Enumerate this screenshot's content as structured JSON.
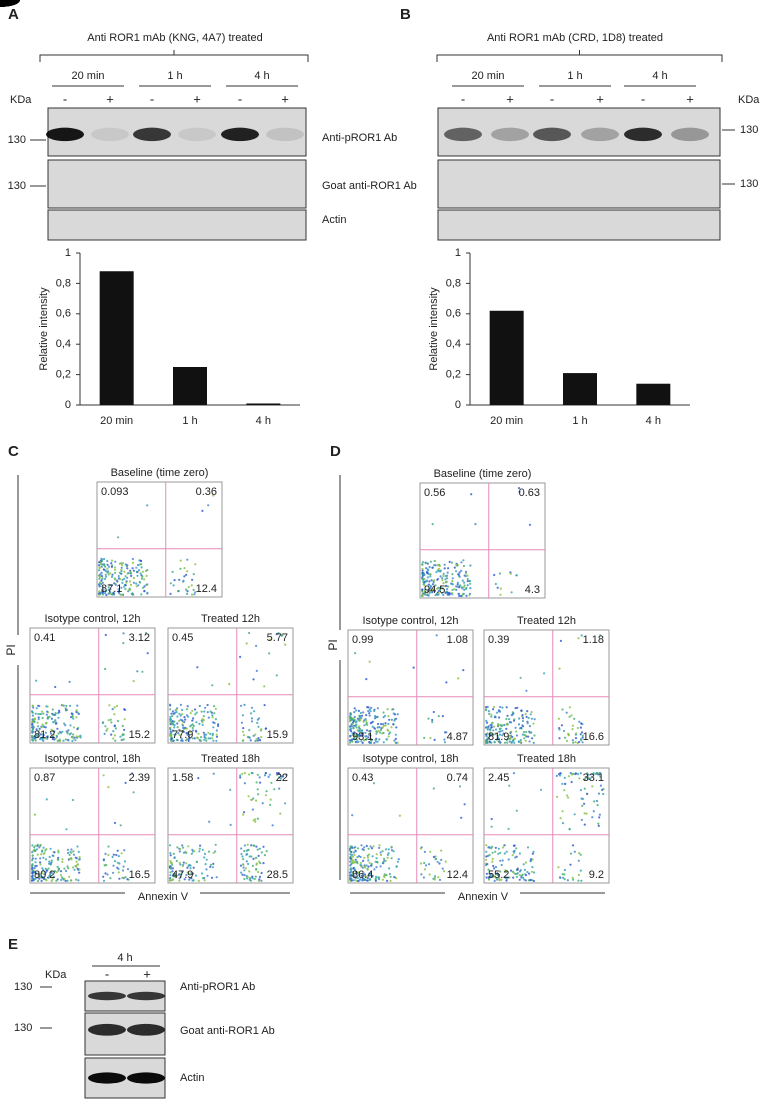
{
  "chart_data": [
    {
      "type": "bar",
      "ylabel": "Relative intensity",
      "categories": [
        "20 min",
        "1 h",
        "4 h"
      ],
      "values": [
        0.88,
        0.25,
        0.01
      ],
      "color": "#111111",
      "ylim": [
        0,
        1
      ],
      "yticks": [
        0,
        {
          "value": 0.2,
          "label": "0,2"
        },
        {
          "value": 0.4,
          "label": "0,4"
        },
        {
          "value": 0.6,
          "label": "0,6"
        },
        {
          "value": 0.8,
          "label": "0,8"
        },
        1
      ]
    },
    {
      "type": "bar",
      "ylabel": "Relative intensity",
      "categories": [
        "20 min",
        "1 h",
        "4 h"
      ],
      "values": [
        0.62,
        0.21,
        0.14
      ],
      "color": "#111111",
      "ylim": [
        0,
        1
      ],
      "yticks": [
        0,
        {
          "value": 0.2,
          "label": "0,2"
        },
        {
          "value": 0.4,
          "label": "0,4"
        },
        {
          "value": 0.6,
          "label": "0,6"
        },
        {
          "value": 0.8,
          "label": "0,8"
        },
        1
      ]
    }
  ],
  "panels": {
    "A": {
      "label": "A",
      "treatment": "Anti ROR1 mAb (KNG, 4A7) treated",
      "times": [
        "20 min",
        "1 h",
        "4 h"
      ],
      "signs": [
        "-",
        "+"
      ],
      "kda": "KDa",
      "marker": "130",
      "blots": [
        "Anti-pROR1 Ab",
        "Goat anti-ROR1 Ab",
        "Actin"
      ]
    },
    "B": {
      "label": "B",
      "treatment": "Anti ROR1  mAb (CRD, 1D8) treated",
      "times": [
        "20 min",
        "1 h",
        "4 h"
      ],
      "signs": [
        "-",
        "+"
      ],
      "kda": "KDa",
      "marker": "130"
    },
    "C": {
      "label": "C",
      "y_axis": "PI",
      "x_axis": "Annexin V",
      "plots": [
        {
          "title": "Baseline (time zero)",
          "quadrants": [
            0.093,
            0.36,
            87.1,
            12.4
          ]
        },
        {
          "title": "Isotype control, 12h",
          "quadrants": [
            0.41,
            3.12,
            81.2,
            15.2
          ]
        },
        {
          "title": "Treated 12h",
          "quadrants": [
            0.45,
            5.77,
            77.9,
            15.9
          ]
        },
        {
          "title": "Isotype control, 18h",
          "quadrants": [
            0.87,
            2.39,
            80.2,
            16.5
          ]
        },
        {
          "title": "Treated 18h",
          "quadrants": [
            1.58,
            22,
            47.9,
            28.5
          ]
        }
      ]
    },
    "D": {
      "label": "D",
      "y_axis": "PI",
      "x_axis": "Annexin V",
      "plots": [
        {
          "title": "Baseline (time zero)",
          "quadrants": [
            0.56,
            0.63,
            94.5,
            4.3
          ]
        },
        {
          "title": "Isotype control, 12h",
          "quadrants": [
            0.99,
            1.08,
            93.1,
            4.87
          ]
        },
        {
          "title": "Treated 12h",
          "quadrants": [
            0.39,
            1.18,
            81.9,
            16.6
          ]
        },
        {
          "title": "Isotype control, 18h",
          "quadrants": [
            0.43,
            0.74,
            86.4,
            12.4
          ]
        },
        {
          "title": "Treated 18h",
          "quadrants": [
            2.45,
            33.1,
            55.2,
            9.2
          ]
        }
      ]
    },
    "E": {
      "label": "E",
      "time": "4 h",
      "signs": [
        "-",
        "+"
      ],
      "kda": "KDa",
      "marker": "130",
      "blots": [
        "Anti-pROR1 Ab",
        "Goat anti-ROR1 Ab",
        "Actin"
      ]
    }
  }
}
